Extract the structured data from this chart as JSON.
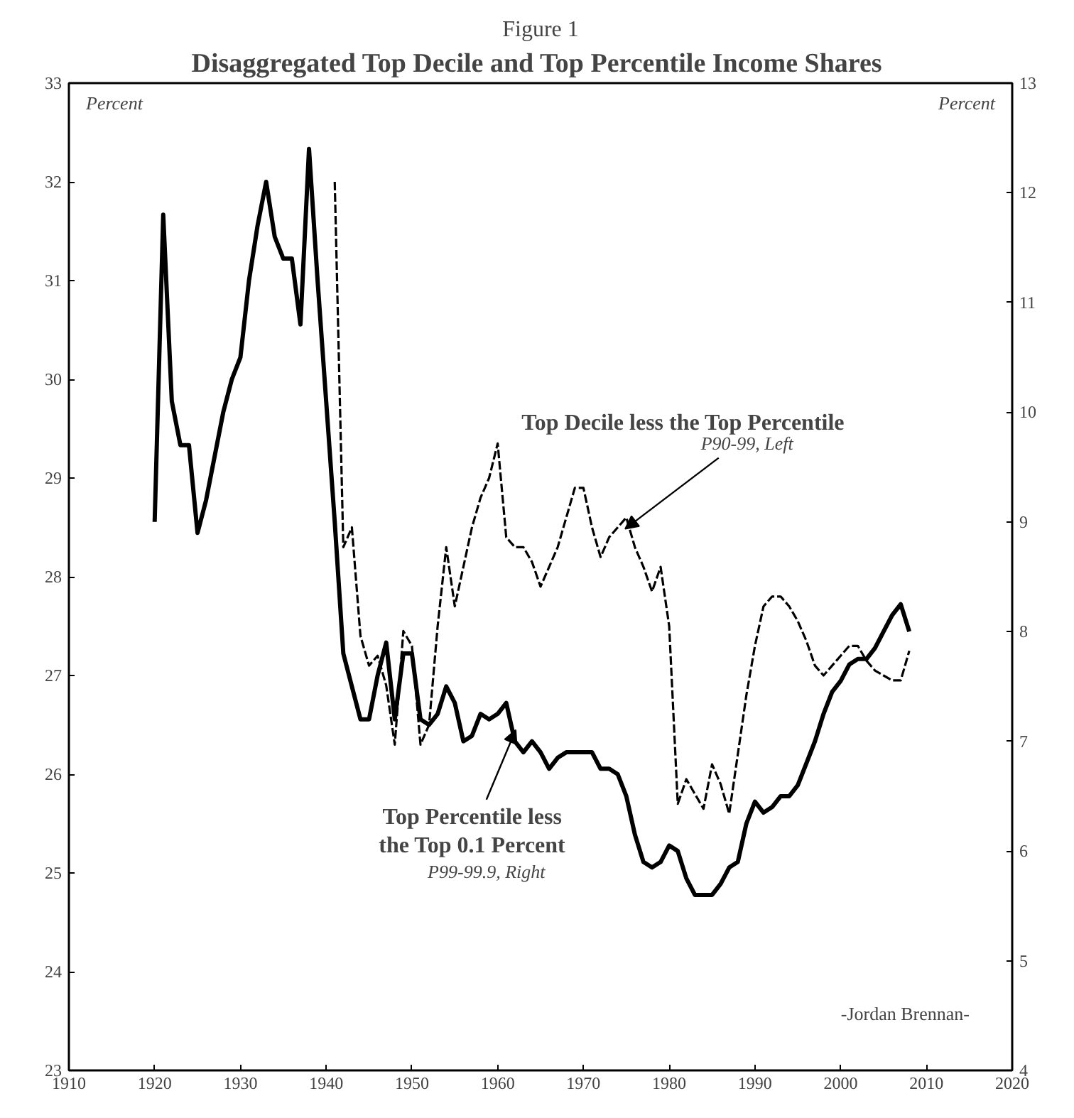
{
  "chart_data": {
    "type": "line",
    "title": "Figure 1",
    "subtitle": "Disaggregated Top Decile and Top Percentile  Income Shares",
    "ylabel": "Percent",
    "y2label": "Percent",
    "xlim": [
      1910,
      2020
    ],
    "xticks": [
      1910,
      1920,
      1930,
      1940,
      1950,
      1960,
      1970,
      1980,
      1990,
      2000,
      2010,
      2020
    ],
    "ylim": [
      23,
      33
    ],
    "yticks": [
      23,
      24,
      25,
      26,
      27,
      28,
      29,
      30,
      31,
      32,
      33
    ],
    "y2lim": [
      4,
      13
    ],
    "y2ticks": [
      4,
      5,
      6,
      7,
      8,
      9,
      10,
      11,
      12,
      13
    ],
    "series": [
      {
        "name": "Top Decile less the Top Percentile",
        "color": "#000000",
        "line_style": "dashed",
        "x": [
          1941,
          1942,
          1943,
          1944,
          1945,
          1946,
          1947,
          1948,
          1949,
          1950,
          1951,
          1952,
          1953,
          1954,
          1955,
          1956,
          1957,
          1958,
          1959,
          1960,
          1961,
          1962,
          1963,
          1964,
          1965,
          1966,
          1967,
          1968,
          1969,
          1970,
          1971,
          1972,
          1973,
          1974,
          1975,
          1976,
          1977,
          1978,
          1979,
          1980,
          1981,
          1982,
          1983,
          1984,
          1985,
          1986,
          1987,
          1988,
          1989,
          1990,
          1991,
          1992,
          1993,
          1994,
          1995,
          1996,
          1997,
          1998,
          1999,
          2000,
          2001,
          2002,
          2003,
          2004,
          2005,
          2006,
          2007,
          2008
        ],
        "values": [
          32.0,
          28.3,
          28.5,
          27.4,
          27.1,
          27.2,
          26.9,
          26.3,
          27.45,
          27.3,
          26.3,
          26.5,
          27.5,
          28.3,
          27.7,
          28.1,
          28.5,
          28.8,
          29.0,
          29.35,
          28.4,
          28.3,
          28.3,
          28.15,
          27.9,
          28.1,
          28.3,
          28.6,
          28.9,
          28.9,
          28.5,
          28.2,
          28.4,
          28.5,
          28.6,
          28.3,
          28.1,
          27.85,
          28.1,
          27.5,
          25.7,
          25.95,
          25.8,
          25.65,
          26.1,
          25.9,
          25.6,
          26.2,
          26.8,
          27.3,
          27.7,
          27.8,
          27.8,
          27.7,
          27.55,
          27.35,
          27.1,
          27.0,
          27.1,
          27.2,
          27.3,
          27.3,
          27.15,
          27.05,
          27.0,
          26.95,
          26.95,
          27.25
        ]
      },
      {
        "name": "Top Percentile less\nthe Top 0.1 Percent",
        "color": "#000000",
        "line_style": "solid",
        "axis": "y2",
        "x": [
          1920,
          1921,
          1922,
          1923,
          1924,
          1925,
          1926,
          1927,
          1928,
          1929,
          1930,
          1931,
          1932,
          1933,
          1934,
          1935,
          1936,
          1937,
          1938,
          1939,
          1940,
          1941,
          1942,
          1943,
          1944,
          1945,
          1946,
          1947,
          1948,
          1949,
          1950,
          1951,
          1952,
          1953,
          1954,
          1955,
          1956,
          1957,
          1958,
          1959,
          1960,
          1961,
          1962,
          1963,
          1964,
          1965,
          1966,
          1967,
          1968,
          1969,
          1970,
          1971,
          1972,
          1973,
          1974,
          1975,
          1976,
          1977,
          1978,
          1979,
          1980,
          1981,
          1982,
          1983,
          1984,
          1985,
          1986,
          1987,
          1988,
          1989,
          1990,
          1991,
          1992,
          1993,
          1994,
          1995,
          1996,
          1997,
          1998,
          1999,
          2000,
          2001,
          2002,
          2003,
          2004,
          2005,
          2006,
          2007,
          2008
        ],
        "values": [
          9.0,
          11.8,
          10.1,
          9.7,
          9.7,
          8.9,
          9.2,
          9.6,
          10.0,
          10.3,
          10.5,
          11.2,
          11.7,
          12.1,
          11.6,
          11.4,
          11.4,
          10.8,
          12.4,
          11.2,
          10.1,
          9.0,
          7.8,
          7.5,
          7.2,
          7.2,
          7.6,
          7.9,
          7.2,
          7.8,
          7.8,
          7.2,
          7.15,
          7.25,
          7.5,
          7.35,
          7.0,
          7.05,
          7.25,
          7.2,
          7.25,
          7.35,
          7.0,
          6.9,
          7.0,
          6.9,
          6.75,
          6.85,
          6.9,
          6.9,
          6.9,
          6.9,
          6.75,
          6.75,
          6.7,
          6.5,
          6.15,
          5.9,
          5.85,
          5.9,
          6.05,
          6.0,
          5.75,
          5.6,
          5.6,
          5.6,
          5.7,
          5.85,
          5.9,
          6.25,
          6.45,
          6.35,
          6.4,
          6.5,
          6.5,
          6.6,
          6.8,
          7.0,
          7.25,
          7.45,
          7.55,
          7.7,
          7.75,
          7.75,
          7.85,
          8.0,
          8.15,
          8.25,
          8.0
        ]
      }
    ],
    "annotations": [
      {
        "text": "P90-99, Left",
        "x": 1975,
        "y": 28.6
      },
      "P99-99.9, Right",
      "-Jordan Brennan-"
    ]
  }
}
